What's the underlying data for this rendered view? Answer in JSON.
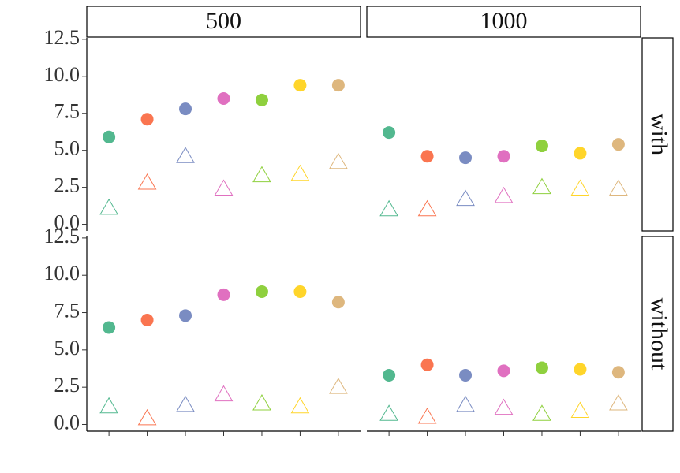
{
  "chart_data": {
    "type": "scatter",
    "facet_cols": [
      "500",
      "1000"
    ],
    "facet_rows": [
      "with",
      "without"
    ],
    "categories": [
      null,
      null,
      null,
      null,
      null,
      null,
      null
    ],
    "colors": [
      "#52b88f",
      "#fa7550",
      "#7a8cc2",
      "#e070c0",
      "#8fd03e",
      "#ffd52a",
      "#deb77e"
    ],
    "ylim": [
      -0.45,
      12.6
    ],
    "yticks": [
      {
        "value": 0,
        "label": "0.0"
      },
      {
        "value": 2.5,
        "label": "2.5"
      },
      {
        "value": 5,
        "label": "5.0"
      },
      {
        "value": 7.5,
        "label": "7.5"
      },
      {
        "value": 10,
        "label": "10.0"
      },
      {
        "value": 12.5,
        "label": "12.5"
      }
    ],
    "panels": [
      [
        {
          "series": [
            {
              "marker": "circle",
              "values": [
                5.9,
                7.1,
                7.8,
                8.5,
                8.4,
                9.4,
                9.4
              ]
            },
            {
              "marker": "triangle",
              "values": [
                1.1,
                2.8,
                4.6,
                2.4,
                3.3,
                3.4,
                4.2
              ]
            }
          ]
        },
        {
          "series": [
            {
              "marker": "circle",
              "values": [
                6.2,
                4.6,
                4.5,
                4.6,
                5.3,
                4.8,
                5.4
              ]
            },
            {
              "marker": "triangle",
              "values": [
                1.0,
                1.0,
                1.7,
                1.9,
                2.5,
                2.4,
                2.4
              ]
            }
          ]
        }
      ],
      [
        {
          "series": [
            {
              "marker": "circle",
              "values": [
                6.5,
                7.0,
                7.3,
                8.7,
                8.9,
                8.9,
                8.2
              ]
            },
            {
              "marker": "triangle",
              "values": [
                1.2,
                0.4,
                1.3,
                2.0,
                1.4,
                1.2,
                2.5
              ]
            }
          ]
        },
        {
          "series": [
            {
              "marker": "circle",
              "values": [
                3.3,
                4.0,
                3.3,
                3.6,
                3.8,
                3.7,
                3.5
              ]
            },
            {
              "marker": "triangle",
              "values": [
                0.7,
                0.5,
                1.3,
                1.1,
                0.7,
                0.9,
                1.4
              ]
            }
          ]
        }
      ]
    ]
  }
}
